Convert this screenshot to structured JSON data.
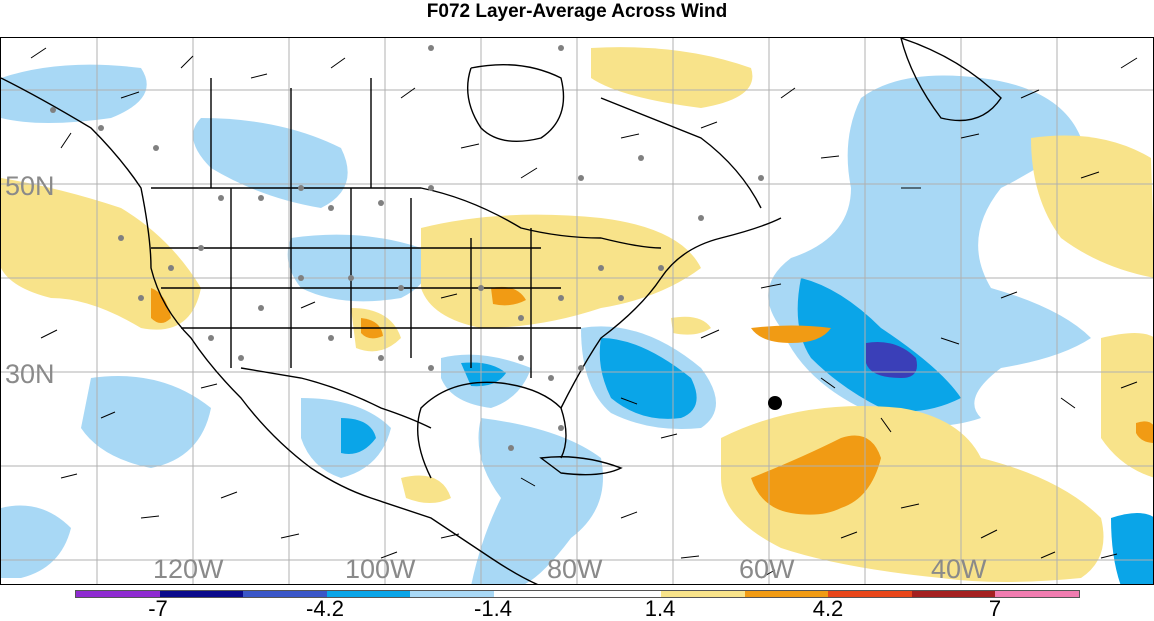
{
  "title": "F072 Layer-Average Across Wind",
  "map": {
    "lat_labels": [
      "50N",
      "30N"
    ],
    "lon_labels": [
      "120W",
      "100W",
      "80W",
      "60W",
      "40W"
    ]
  },
  "legend": {
    "colors": [
      "#8e2bd1",
      "#0a0a8c",
      "#3a56c8",
      "#0aa5e8",
      "#a8d8f5",
      "#ffffff",
      "#ffffff",
      "#f8e38a",
      "#f19b14",
      "#e8461a",
      "#a42020",
      "#f07cb0"
    ],
    "tick_labels": [
      "-7",
      "-4.2",
      "-1.4",
      "1.4",
      "4.2",
      "7"
    ]
  },
  "colors": {
    "light_blue": "#a8d8f5",
    "mid_blue": "#0aa5e8",
    "dark_blue": "#3a3fb8",
    "light_yellow": "#f8e38a",
    "orange": "#f19b14",
    "station_dot": "#808080",
    "grid": "#b0b0b0"
  }
}
